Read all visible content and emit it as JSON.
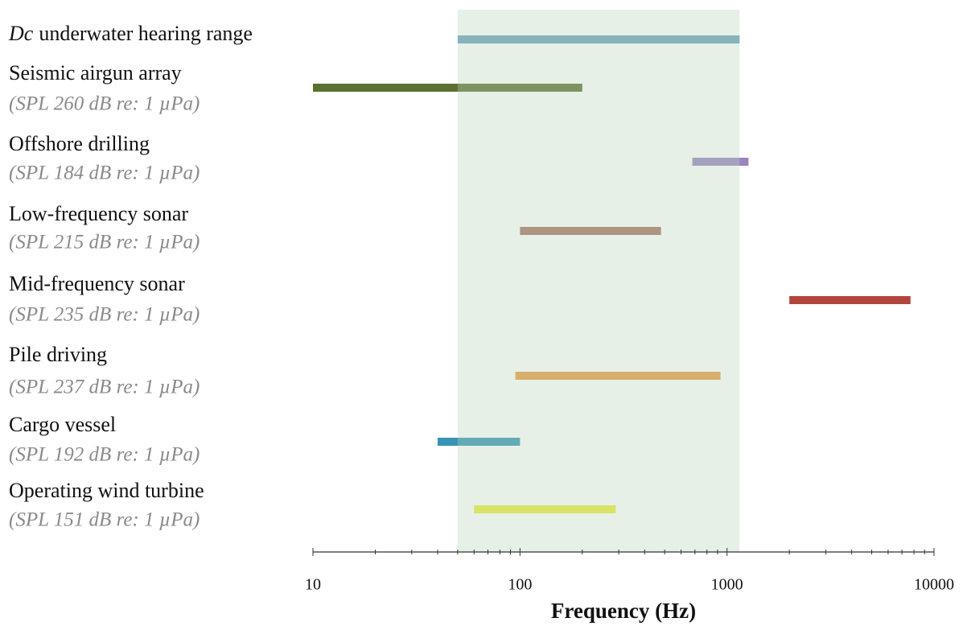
{
  "chart_data": {
    "type": "range",
    "xlabel": "Frequency (Hz)",
    "xscale": "log",
    "xlim": [
      10,
      10000
    ],
    "xticks": [
      10,
      100,
      1000,
      10000
    ],
    "shade_series": 0,
    "shade_color": "rgba(185,212,185,0.35)",
    "categories": [
      {
        "italic": "Dc",
        "label": "underwater hearing range"
      },
      {
        "label": "Seismic airgun array",
        "note": "(SPL 260 dB re: 1 µPa)"
      },
      {
        "label": "Offshore drilling",
        "note": "(SPL 184 dB re: 1 µPa)"
      },
      {
        "label": "Low-frequency sonar",
        "note": "(SPL 215 dB re: 1 µPa)"
      },
      {
        "label": "Mid-frequency sonar",
        "note": "(SPL 235 dB re: 1 µPa)"
      },
      {
        "label": "Pile driving",
        "note": "(SPL 237 dB re: 1 µPa)"
      },
      {
        "label": "Cargo vessel",
        "note": "(SPL 192 dB re: 1 µPa)"
      },
      {
        "label": "Operating wind turbine",
        "note": "(SPL 151 dB re: 1 µPa)"
      }
    ],
    "ranges": [
      {
        "low": 50,
        "high": 1150,
        "color": "#6aa1bf"
      },
      {
        "low": 10,
        "high": 200,
        "color": "#5b7132"
      },
      {
        "low": 680,
        "high": 1270,
        "color": "#9a85bf"
      },
      {
        "low": 100,
        "high": 480,
        "color": "#a87462"
      },
      {
        "low": 2000,
        "high": 7700,
        "color": "#b0463d"
      },
      {
        "low": 95,
        "high": 930,
        "color": "#e69a45"
      },
      {
        "low": 40,
        "high": 100,
        "color": "#3794b4"
      },
      {
        "low": 60,
        "high": 290,
        "color": "#eaec3a"
      }
    ]
  }
}
